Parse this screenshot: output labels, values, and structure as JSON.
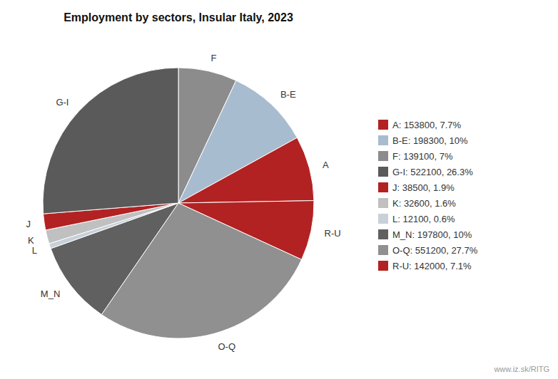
{
  "chart_data": {
    "type": "pie",
    "title": "Employment by sectors, Insular Italy, 2023",
    "categories": [
      "F",
      "B-E",
      "A",
      "R-U",
      "O-Q",
      "M_N",
      "L",
      "K",
      "J",
      "G-I"
    ],
    "values": [
      139100,
      198300,
      153800,
      142000,
      551200,
      197800,
      12100,
      32600,
      38500,
      522100
    ],
    "colors": [
      "#8c8c8c",
      "#a8bccf",
      "#b22222",
      "#b22222",
      "#909090",
      "#606060",
      "#c8d0d8",
      "#c0c0c0",
      "#b22222",
      "#5a5a5a"
    ],
    "legend": "right",
    "legend_labels": [
      "A: 153800, 7.7%",
      "B-E: 198300, 10%",
      "F: 139100, 7%",
      "G-I: 522100, 26.3%",
      "J: 38500, 1.9%",
      "K: 32600, 1.6%",
      "L: 12100, 0.6%",
      "M_N: 197800, 10%",
      "O-Q: 551200, 27.7%",
      "R-U: 142000, 7.1%"
    ],
    "legend_colors": [
      "#b22222",
      "#a8bccf",
      "#8c8c8c",
      "#5a5a5a",
      "#b22222",
      "#c0c0c0",
      "#c8d0d8",
      "#606060",
      "#909090",
      "#b22222"
    ],
    "annotations": [
      "www.iz.sk/RITG"
    ]
  }
}
